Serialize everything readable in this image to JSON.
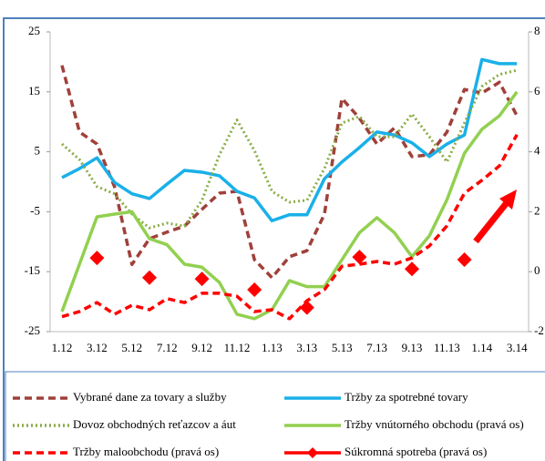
{
  "chart_data": {
    "type": "line",
    "categories": [
      "1.12",
      null,
      "3.12",
      null,
      "5.12",
      null,
      "7.12",
      null,
      "9.12",
      null,
      "11.12",
      null,
      "1.13",
      null,
      "3.13",
      null,
      "5.13",
      null,
      "7.13",
      null,
      "9.13",
      null,
      "11.13",
      null,
      "1.14",
      null,
      "3.14"
    ],
    "ylim": [
      -25,
      25
    ],
    "yticks": [
      25,
      15,
      5,
      -5,
      -15,
      -25
    ],
    "y2lim": [
      -2,
      8
    ],
    "y2ticks": [
      8,
      6,
      4,
      2,
      0,
      -2
    ],
    "legend": "bottom",
    "series": [
      {
        "name": "Vybrané dane za tovary a služby",
        "color": "#a0403a",
        "style": "dashed",
        "values": [
          19.4,
          8.3,
          6.3,
          -0.8,
          -13.8,
          -9.5,
          -8.4,
          -7.4,
          -4.6,
          -1.9,
          -1.6,
          -13,
          -16,
          -12.5,
          -11.5,
          -5.4,
          13.9,
          10.6,
          6.3,
          9,
          4.2,
          4.5,
          8.3,
          15.4,
          14.8,
          16.6,
          11
        ]
      },
      {
        "name": "Tržby za spotrebné tovary",
        "color": "#1ab0e8",
        "style": "solid",
        "values": [
          0.7,
          2.2,
          4,
          -0.1,
          -2,
          -2.8,
          -0.4,
          1.9,
          1.6,
          1,
          -1.6,
          -2.7,
          -6.5,
          -5.5,
          -5.5,
          0.5,
          3.3,
          5.7,
          8.3,
          7.8,
          6.5,
          4.2,
          6.3,
          7.8,
          20.4,
          19.7,
          19.7
        ]
      },
      {
        "name": "Dovoz obchodných reťazcov a áut",
        "color": "#8aac46",
        "style": "dotted",
        "values": [
          6.3,
          3.7,
          -0.8,
          -2,
          -5.4,
          -7.7,
          -6.9,
          -7.4,
          -3.1,
          4.5,
          10.3,
          5.2,
          -1.6,
          -3.4,
          -3.1,
          2.2,
          9.8,
          10.9,
          7.5,
          7.5,
          11.3,
          7.5,
          3.3,
          9.8,
          15.9,
          17.9,
          18.6
        ]
      },
      {
        "name": "Tržby vnútorného obchodu (pravá os)",
        "color": "#92d050",
        "style": "solid",
        "axis": "y2",
        "values": [
          -1.33,
          0.25,
          1.83,
          1.92,
          2,
          1.1,
          0.9,
          0.25,
          0.15,
          -0.36,
          -1.42,
          -1.57,
          -1.27,
          -0.3,
          -0.5,
          -0.5,
          0.4,
          1.3,
          1.8,
          1.3,
          0.5,
          1.2,
          2.4,
          3.95,
          4.75,
          5.2,
          6
        ]
      },
      {
        "name": "Tržby maloobchodu (pravá os)",
        "color": "#ff0000",
        "style": "dashed",
        "axis": "y2",
        "values": [
          -1.5,
          -1.33,
          -1.03,
          -1.42,
          -1.12,
          -1.27,
          -0.9,
          -1.03,
          -0.72,
          -0.72,
          -0.82,
          -1.33,
          -1.27,
          -1.57,
          -0.97,
          -0.6,
          0.18,
          0.25,
          0.34,
          0.25,
          0.46,
          0.86,
          1.53,
          2.62,
          3.05,
          3.53,
          4.57
        ]
      },
      {
        "name": "Súkromná spotreba (pravá os)",
        "color": "#ff0000",
        "style": "markers",
        "axis": "y2",
        "values": [
          null,
          null,
          0.46,
          null,
          null,
          -0.2,
          null,
          null,
          -0.24,
          null,
          null,
          -0.6,
          null,
          null,
          -1.2,
          null,
          null,
          0.49,
          null,
          null,
          0.09,
          null,
          null,
          0.4,
          null,
          null,
          null
        ]
      }
    ]
  }
}
